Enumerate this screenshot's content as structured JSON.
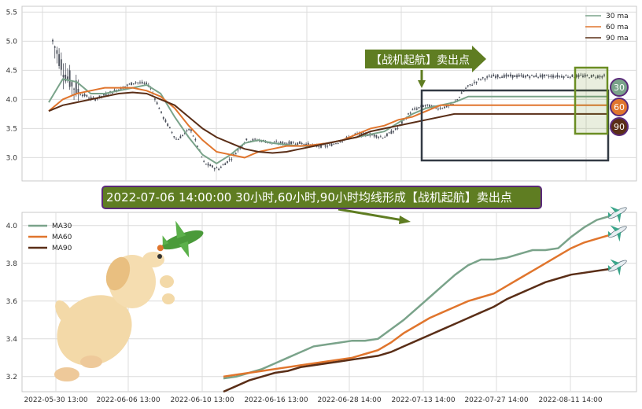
{
  "banner_text": "2022-07-06 14:00:00 30小时,60小时,90小时均线形成【战机起航】卖出点",
  "signal_label": "【战机起航】卖出点",
  "badges": [
    "30",
    "60",
    "90"
  ],
  "colors": {
    "ma30": "#7aa38a",
    "ma60": "#e0752d",
    "ma90": "#5a2e17",
    "banner": "#5f7d22",
    "box": "#333a44",
    "highlight": "#6b8e23"
  },
  "icons": [
    "dog-illustration",
    "airplane-green-icon",
    "airplane-icon"
  ],
  "chart_data": [
    {
      "type": "line",
      "panel": "top",
      "legend_position": "top-right",
      "grid": true,
      "ylim": [
        2.6,
        5.6
      ],
      "yticks": [
        "3.0",
        "3.5",
        "4.0",
        "4.5",
        "5.0",
        "5.5"
      ],
      "x": [
        0,
        10,
        20,
        30,
        40,
        50,
        60,
        70,
        80,
        90,
        100,
        110,
        120,
        130,
        140,
        150,
        160,
        170,
        180,
        190,
        200,
        210,
        220,
        230,
        240,
        250,
        260,
        270,
        280,
        290,
        300,
        310,
        320,
        330,
        340,
        350,
        360,
        370,
        380,
        390,
        400
      ],
      "price": [
        5.0,
        4.4,
        4.1,
        4.0,
        4.1,
        4.2,
        4.3,
        4.25,
        3.7,
        3.3,
        3.5,
        2.9,
        2.8,
        3.0,
        3.3,
        3.3,
        3.25,
        3.25,
        3.25,
        3.2,
        3.2,
        3.3,
        3.4,
        3.4,
        3.35,
        3.5,
        3.8,
        3.9,
        3.85,
        3.9,
        4.2,
        4.35,
        4.4,
        4.4,
        4.4,
        4.4,
        4.4,
        4.4,
        4.4,
        4.4,
        4.4
      ],
      "series": [
        {
          "name": "30 ma",
          "values": [
            3.95,
            4.35,
            4.3,
            4.1,
            4.1,
            4.15,
            4.2,
            4.25,
            4.1,
            3.7,
            3.35,
            3.05,
            2.9,
            3.05,
            3.25,
            3.3,
            3.25,
            3.22,
            3.2,
            3.2,
            3.25,
            3.3,
            3.35,
            3.4,
            3.45,
            3.6,
            3.75,
            3.85,
            3.9,
            3.95,
            4.05,
            4.05,
            4.05,
            4.05,
            4.05,
            4.05,
            4.05,
            4.05,
            4.05,
            4.05,
            4.05
          ]
        },
        {
          "name": "60 ma",
          "values": [
            3.8,
            4.0,
            4.1,
            4.15,
            4.2,
            4.2,
            4.2,
            4.15,
            4.05,
            3.85,
            3.55,
            3.3,
            3.1,
            3.05,
            3.0,
            3.1,
            3.15,
            3.2,
            3.2,
            3.22,
            3.25,
            3.3,
            3.4,
            3.5,
            3.55,
            3.65,
            3.7,
            3.8,
            3.9,
            3.9,
            3.9,
            3.9,
            3.9,
            3.9,
            3.9,
            3.9,
            3.9,
            3.9,
            3.9,
            3.9,
            3.9
          ]
        },
        {
          "name": "90 ma",
          "values": [
            3.8,
            3.9,
            3.95,
            4.0,
            4.05,
            4.1,
            4.12,
            4.1,
            4.0,
            3.9,
            3.7,
            3.5,
            3.35,
            3.25,
            3.15,
            3.1,
            3.08,
            3.1,
            3.15,
            3.2,
            3.25,
            3.3,
            3.35,
            3.45,
            3.5,
            3.55,
            3.6,
            3.65,
            3.7,
            3.75,
            3.75,
            3.75,
            3.75,
            3.75,
            3.75,
            3.75,
            3.75,
            3.75,
            3.75,
            3.75,
            3.75
          ]
        }
      ]
    },
    {
      "type": "line",
      "panel": "bottom",
      "legend_position": "top-left",
      "grid": true,
      "ylim": [
        3.12,
        4.07
      ],
      "yticks": [
        "3.2",
        "3.4",
        "3.6",
        "3.8",
        "4.0"
      ],
      "categories": [
        "2022-05-30 13:00",
        "2022-06-06 13:00",
        "2022-06-10 13:00",
        "2022-06-16 13:00",
        "2022-06-28 14:00",
        "2022-07-13 14:00",
        "2022-07-27 14:00",
        "2022-08-11 14:00"
      ],
      "x": [
        0,
        1,
        2,
        3,
        4,
        5,
        6,
        7,
        8,
        9,
        10,
        11,
        12,
        13,
        14,
        15,
        16,
        17,
        18,
        19,
        20,
        21,
        22,
        23,
        24,
        25,
        26,
        27,
        28,
        29,
        30
      ],
      "series": [
        {
          "name": "MA30",
          "values": [
            3.19,
            3.2,
            3.22,
            3.24,
            3.27,
            3.3,
            3.33,
            3.36,
            3.37,
            3.38,
            3.39,
            3.39,
            3.4,
            3.45,
            3.5,
            3.56,
            3.62,
            3.68,
            3.74,
            3.79,
            3.82,
            3.82,
            3.83,
            3.85,
            3.87,
            3.87,
            3.88,
            3.94,
            3.99,
            4.03,
            4.05
          ]
        },
        {
          "name": "MA60",
          "values": [
            3.2,
            3.21,
            3.22,
            3.23,
            3.24,
            3.25,
            3.26,
            3.27,
            3.28,
            3.29,
            3.3,
            3.32,
            3.34,
            3.38,
            3.43,
            3.47,
            3.51,
            3.54,
            3.57,
            3.6,
            3.62,
            3.64,
            3.68,
            3.72,
            3.76,
            3.8,
            3.84,
            3.88,
            3.91,
            3.93,
            3.95
          ]
        },
        {
          "name": "MA90",
          "values": [
            3.12,
            3.15,
            3.18,
            3.2,
            3.22,
            3.23,
            3.25,
            3.26,
            3.27,
            3.28,
            3.29,
            3.3,
            3.31,
            3.33,
            3.36,
            3.39,
            3.42,
            3.45,
            3.48,
            3.51,
            3.54,
            3.57,
            3.61,
            3.64,
            3.67,
            3.7,
            3.72,
            3.74,
            3.75,
            3.76,
            3.77
          ]
        }
      ]
    }
  ]
}
